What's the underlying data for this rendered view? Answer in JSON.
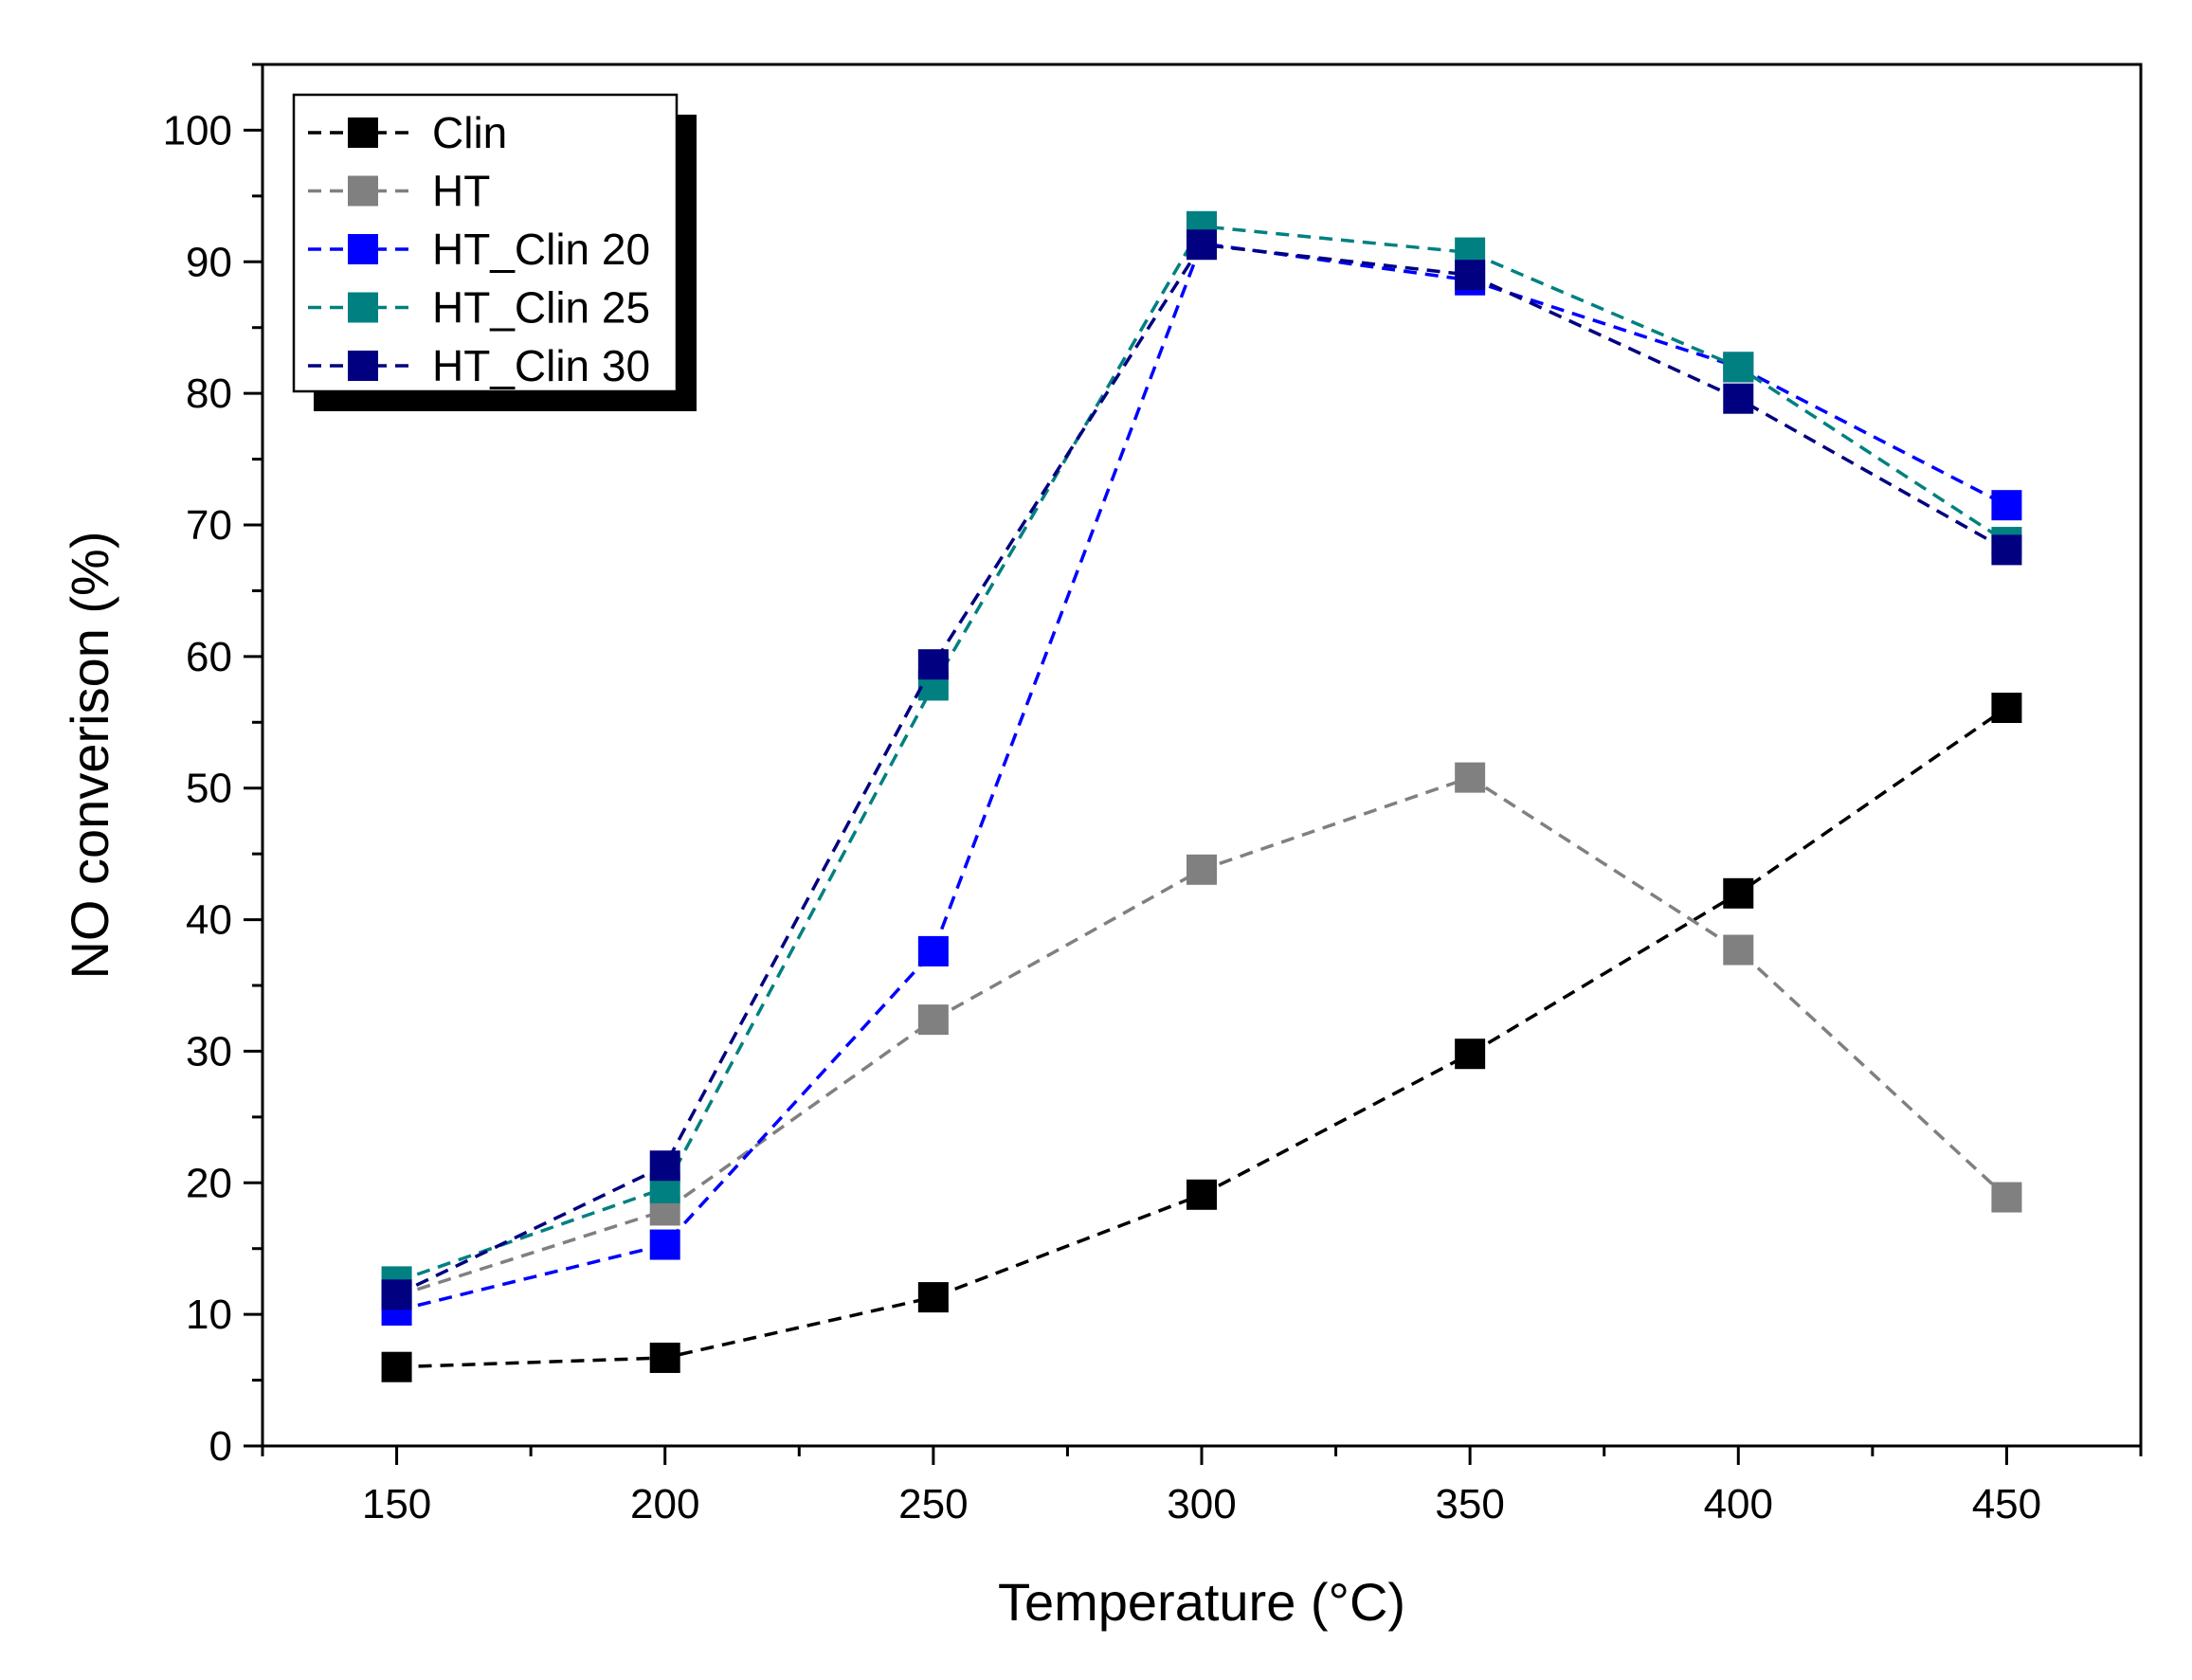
{
  "chart_data": {
    "type": "line",
    "title": "",
    "xlabel": "Temperature (°C)",
    "ylabel": "NO converison (%)",
    "xlim": [
      125,
      475
    ],
    "ylim": [
      0,
      105
    ],
    "xticks": [
      150,
      200,
      250,
      300,
      350,
      400,
      450
    ],
    "yticks": [
      0,
      10,
      20,
      30,
      40,
      50,
      60,
      70,
      80,
      90,
      100
    ],
    "x": [
      150,
      200,
      250,
      300,
      350,
      400,
      450
    ],
    "legend_position": "top-left",
    "series": [
      {
        "name": "Clin",
        "color": "#000000",
        "values": [
          6.0,
          6.7,
          11.3,
          19.1,
          29.8,
          42.0,
          56.1
        ]
      },
      {
        "name": "HT",
        "color": "#808080",
        "values": [
          11.4,
          17.9,
          32.4,
          43.8,
          50.8,
          37.7,
          18.9
        ]
      },
      {
        "name": "HT_Clin 20",
        "color": "#0000FF",
        "values": [
          10.3,
          15.3,
          37.6,
          91.4,
          88.6,
          82.0,
          71.5
        ]
      },
      {
        "name": "HT_Clin 25",
        "color": "#008080",
        "values": [
          12.5,
          19.6,
          57.8,
          92.7,
          90.7,
          82.0,
          68.7
        ]
      },
      {
        "name": "HT_Clin 30",
        "color": "#000080",
        "values": [
          11.5,
          21.3,
          59.4,
          91.3,
          89.0,
          79.6,
          68.1
        ]
      }
    ]
  }
}
